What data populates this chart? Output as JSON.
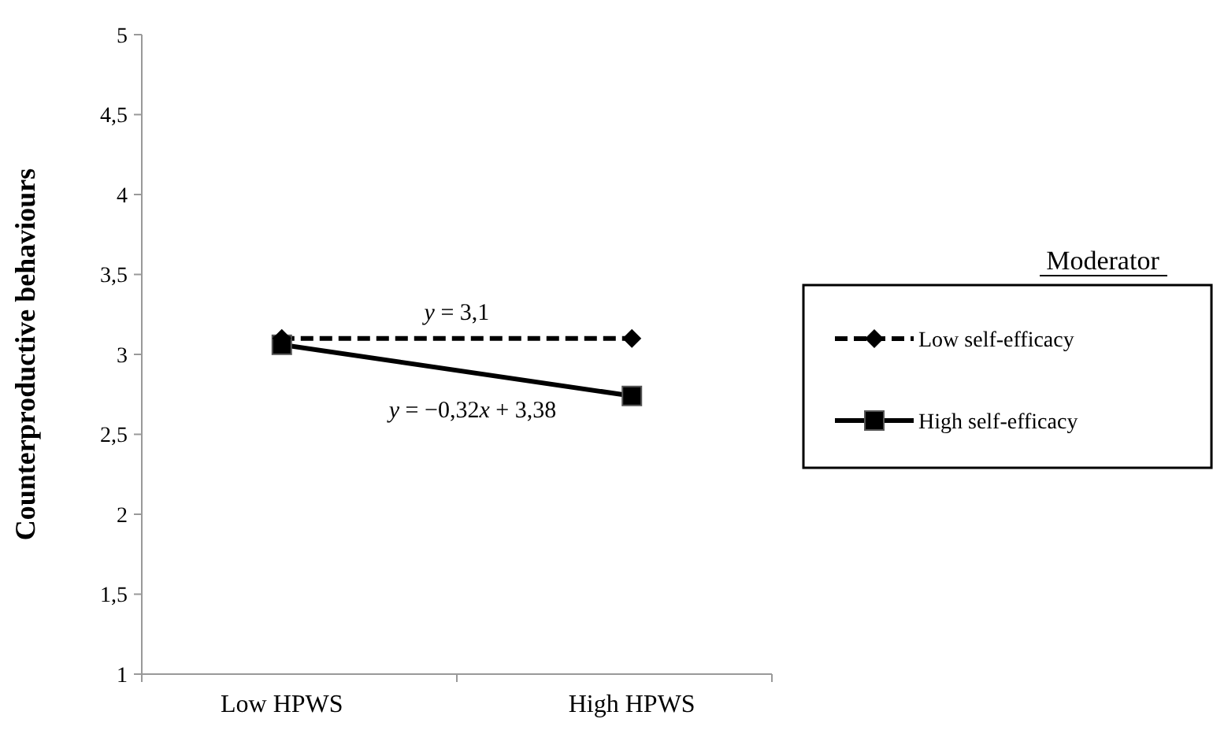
{
  "chart_data": {
    "type": "line",
    "ylabel": "Counterproductive behaviours",
    "categories": [
      "Low HPWS",
      "High HPWS"
    ],
    "series": [
      {
        "name": "Low self-efficacy",
        "color": "#000000",
        "values": [
          3.1,
          3.1
        ],
        "marker": "diamond",
        "line_style": "dashed"
      },
      {
        "name": "High self-efficacy",
        "color": "#000000",
        "values": [
          3.06,
          2.74
        ],
        "marker": "square",
        "line_style": "solid"
      }
    ],
    "ylim": [
      1,
      5
    ],
    "yticks": [
      1,
      {
        "value": 1.5,
        "label": "1,5"
      },
      2,
      {
        "value": 2.5,
        "label": "2,5"
      },
      3,
      {
        "value": 3.5,
        "label": "3,5"
      },
      4,
      {
        "value": 4.5,
        "label": "4,5"
      },
      5
    ],
    "grid": false,
    "legend": "right",
    "legend_title": "Moderator",
    "annotations": [
      "y = 3,1",
      "y = −0,32x + 3,38"
    ]
  }
}
